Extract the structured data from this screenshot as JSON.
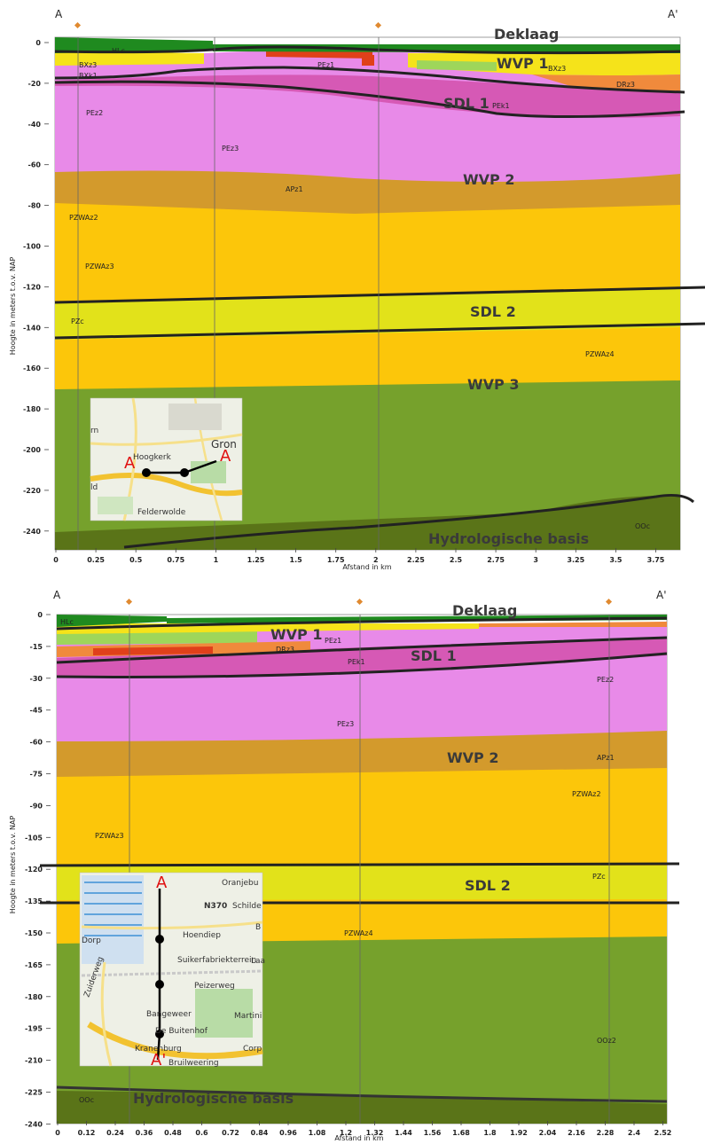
{
  "panel1": {
    "corner_left": "A",
    "corner_right": "A'",
    "ylabel": "Hoogte in meters t.o.v. NAP",
    "xlabel": "Afstand in km",
    "yticks": [
      "0",
      "-20",
      "-40",
      "-60",
      "-80",
      "-100",
      "-120",
      "-140",
      "-160",
      "-180",
      "-200",
      "-220",
      "-240"
    ],
    "xticks": [
      "0",
      "0.25",
      "0.5",
      "0.75",
      "1",
      "1.25",
      "1.5",
      "1.75",
      "2",
      "2.25",
      "2.5",
      "2.75",
      "3",
      "3.25",
      "3.5",
      "3.75"
    ],
    "big_labels": {
      "deklaag": "Deklaag",
      "wvp1": "WVP 1",
      "sdl1": "SDL 1",
      "wvp2": "WVP 2",
      "sdl2": "SDL 2",
      "wvp3": "WVP 3",
      "basis": "Hydrologische basis"
    },
    "unit_labels": {
      "hlc": "HLc",
      "bxz3_a": "BXz3",
      "bxz3_b": "BXz3",
      "bxk1": "BXk1",
      "pez1": "PEz1",
      "pez2": "PEz2",
      "pek1": "PEk1",
      "drz3": "DRz3",
      "pez3": "PEz3",
      "apz1": "APz1",
      "pzwaz2": "PZWAz2",
      "pzwaz3": "PZWAz3",
      "pzc": "PZc",
      "pzwaz4": "PZWAz4",
      "ooc": "OOc"
    },
    "map": {
      "place1": "Hoogkerk",
      "place2": "Gron",
      "place3": "Felderwolde",
      "place4": "rn",
      "place5": "ld",
      "marker_a": "A",
      "marker_a2": "A"
    }
  },
  "panel2": {
    "corner_left": "A",
    "corner_right": "A'",
    "ylabel": "Hoogte in meters t.o.v. NAP",
    "xlabel": "Afstand in km",
    "yticks": [
      "0",
      "-15",
      "-30",
      "-45",
      "-60",
      "-75",
      "-90",
      "-105",
      "-120",
      "-135",
      "-150",
      "-165",
      "-180",
      "-195",
      "-210",
      "-225",
      "-240"
    ],
    "xticks": [
      "0",
      "0.12",
      "0.24",
      "0.36",
      "0.48",
      "0.6",
      "0.72",
      "0.84",
      "0.96",
      "1.08",
      "1.2",
      "1.32",
      "1.44",
      "1.56",
      "1.68",
      "1.8",
      "1.92",
      "2.04",
      "2.16",
      "2.28",
      "2.4",
      "2.52"
    ],
    "big_labels": {
      "deklaag": "Deklaag",
      "wvp1": "WVP 1",
      "sdl1": "SDL 1",
      "wvp2": "WVP 2",
      "sdl2": "SDL 2",
      "basis": "Hydrologische basis"
    },
    "unit_labels": {
      "hlc": "HLc",
      "pez1": "PEz1",
      "drz3": "DRz3",
      "pek1": "PEk1",
      "pez2": "PEz2",
      "pez3": "PEz3",
      "apz1": "APz1",
      "pzwaz2": "PZWAz2",
      "pzwaz3": "PZWAz3",
      "pzc": "PZc",
      "pzwaz4": "PZWAz4",
      "ooz2": "OOz2",
      "ooc": "OOc"
    },
    "map": {
      "place1": "Oranjebu",
      "place2": "N370",
      "place3": "Schilde",
      "place4": "Hoendiep",
      "place5": "Dorp",
      "place6": "Suikerfabriekterrein",
      "place7": "Laa",
      "place8": "Peizerweg",
      "place9": "Bangeweer",
      "place10": "Martini",
      "place11": "De Buitenhof",
      "place12": "Kranenburg",
      "place13": "Corp",
      "place14": "Zuiderweg",
      "place15": "Bruilweering",
      "marker_a": "A",
      "marker_a2": "A'",
      "place16": "B"
    }
  },
  "colors": {
    "deklaag_green": "#1f8a1f",
    "light_green": "#9ed65a",
    "yellow": "#f5e31a",
    "orange": "#f08a3c",
    "red_orange": "#e0401a",
    "magenta": "#d659b5",
    "pink": "#e88ae8",
    "brown": "#d39a2c",
    "gold": "#fcc60a",
    "olive_yellow": "#e2e21a",
    "green": "#76a12c",
    "dark_olive": "#5a7418"
  }
}
